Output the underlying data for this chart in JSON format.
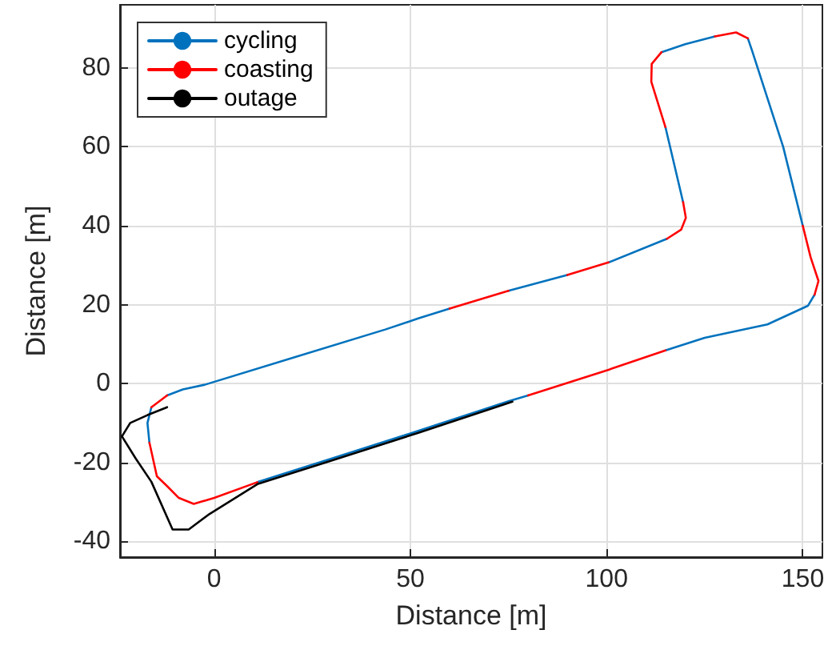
{
  "chart_data": {
    "type": "line",
    "xlabel": "Distance [m]",
    "ylabel": "Distance [m]",
    "xlim": [
      -24,
      155
    ],
    "ylim": [
      -44,
      96
    ],
    "xticks": [
      0,
      50,
      100,
      150
    ],
    "yticks": [
      -40,
      -20,
      0,
      20,
      40,
      60,
      80
    ],
    "grid": true,
    "legend": "top left",
    "series": [
      {
        "name": "cycling",
        "color": "#0072bd",
        "x": [
          -12,
          -8,
          -2.4,
          20,
          43.6,
          52,
          60,
          null,
          75,
          90,
          null,
          100.5,
          115.4,
          null,
          119.5,
          115,
          null,
          114,
          120,
          127.6,
          null,
          136,
          137,
          145,
          150,
          null,
          153,
          151.3,
          141,
          125,
          115,
          null,
          80,
          75,
          52,
          30,
          11,
          null,
          -16.5,
          -17,
          -16
        ],
        "values": [
          -3,
          -1.5,
          -0.3,
          6.5,
          13.7,
          16.5,
          19,
          null,
          23.5,
          27.5,
          null,
          30.7,
          36.7,
          null,
          46,
          65,
          null,
          84,
          86,
          88,
          null,
          87.5,
          84.6,
          60,
          40,
          null,
          22.5,
          19.7,
          15,
          11.6,
          8.4,
          null,
          -3,
          -4.5,
          -12,
          -19,
          -25,
          null,
          -15,
          -10,
          -6
        ]
      },
      {
        "name": "coasting",
        "color": "#ff0000",
        "x": [
          -16,
          -12,
          null,
          -16.5,
          -14.6,
          -12,
          -9,
          -5.2,
          0,
          11,
          null,
          60,
          75,
          null,
          90,
          100.5,
          null,
          115.4,
          119,
          120.2,
          119.5,
          null,
          115,
          111.4,
          111.5,
          114,
          null,
          127.6,
          133,
          136,
          null,
          150,
          152,
          154,
          153,
          null,
          80,
          100.5,
          115
        ],
        "values": [
          -6,
          -3,
          null,
          -15,
          -23.5,
          -26,
          -29,
          -30.5,
          -29,
          -25,
          null,
          19,
          23.5,
          null,
          27.5,
          30.7,
          null,
          36.7,
          39,
          42,
          46,
          null,
          65,
          76.5,
          81,
          84,
          null,
          88,
          89,
          87.5,
          null,
          40,
          32,
          26,
          22.5,
          null,
          -3,
          3.5,
          8.4
        ]
      },
      {
        "name": "outage",
        "color": "#000000",
        "x": [
          -12,
          -17,
          -21.4,
          -23.5,
          -20,
          -16,
          -10.6,
          -6.5,
          -1.1,
          11,
          30,
          52,
          76
        ],
        "values": [
          -6,
          -8,
          -10,
          -13.4,
          -19,
          -24.9,
          -37,
          -37,
          -33,
          -25.5,
          -19.5,
          -12.5,
          -4.6
        ]
      }
    ]
  }
}
